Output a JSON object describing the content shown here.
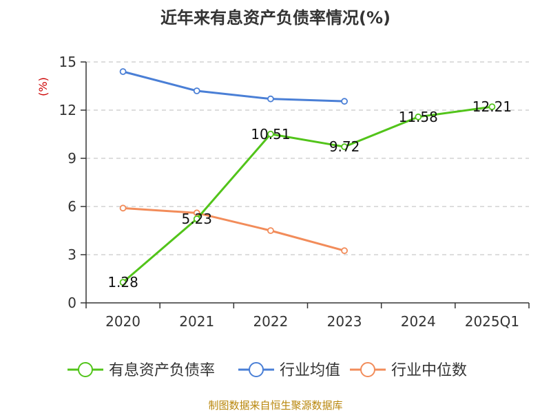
{
  "chart_data": {
    "type": "line",
    "title": "近年来有息资产负债率情况(%)",
    "ylabel": "(%)",
    "xlabel": "",
    "categories": [
      "2020",
      "2021",
      "2022",
      "2023",
      "2024",
      "2025Q1"
    ],
    "ylim": [
      0,
      15
    ],
    "yticks": [
      0,
      3,
      6,
      9,
      12,
      15
    ],
    "grid": true,
    "legend_position": "bottom",
    "series": [
      {
        "name": "有息资产负债率",
        "color": "#52c41a",
        "values": [
          1.28,
          5.23,
          10.51,
          9.72,
          11.58,
          12.21
        ],
        "labels": [
          "1.28",
          "5.23",
          "10.51",
          "9.72",
          "11.58",
          "12.21"
        ]
      },
      {
        "name": "行业均值",
        "color": "#4a7fd6",
        "values": [
          14.4,
          13.2,
          12.7,
          12.55,
          null,
          null
        ]
      },
      {
        "name": "行业中位数",
        "color": "#f28c5a",
        "values": [
          5.9,
          5.6,
          4.5,
          3.25,
          null,
          null
        ]
      }
    ],
    "source": "制图数据来自恒生聚源数据库"
  }
}
